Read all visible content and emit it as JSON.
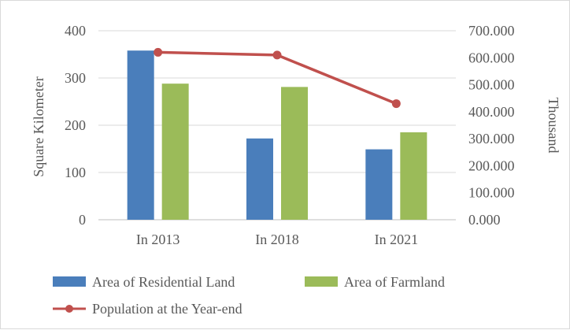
{
  "chart_data": {
    "type": "bar",
    "categories": [
      "In 2013",
      "In 2018",
      "In 2021"
    ],
    "series": [
      {
        "name": "Area of Residential Land",
        "type": "bar",
        "axis": "left",
        "color": "#4a7ebb",
        "values": [
          358,
          172,
          149
        ]
      },
      {
        "name": "Area of Farmland",
        "type": "bar",
        "axis": "left",
        "color": "#9bbb59",
        "values": [
          288,
          281,
          185
        ]
      },
      {
        "name": "Population at the Year-end",
        "type": "line",
        "axis": "right",
        "color": "#c0504d",
        "values": [
          620,
          610,
          430
        ]
      }
    ],
    "ylabel": "Square Kilometer",
    "y2label": "Thousand",
    "ylim": [
      0,
      400
    ],
    "y2lim": [
      0,
      700
    ],
    "yticks": [
      "0",
      "100",
      "200",
      "300",
      "400"
    ],
    "y2ticks": [
      "0.000",
      "100.000",
      "200.000",
      "300.000",
      "400.000",
      "500.000",
      "600.000",
      "700.000"
    ],
    "grid": true,
    "legend_position": "bottom-left"
  }
}
